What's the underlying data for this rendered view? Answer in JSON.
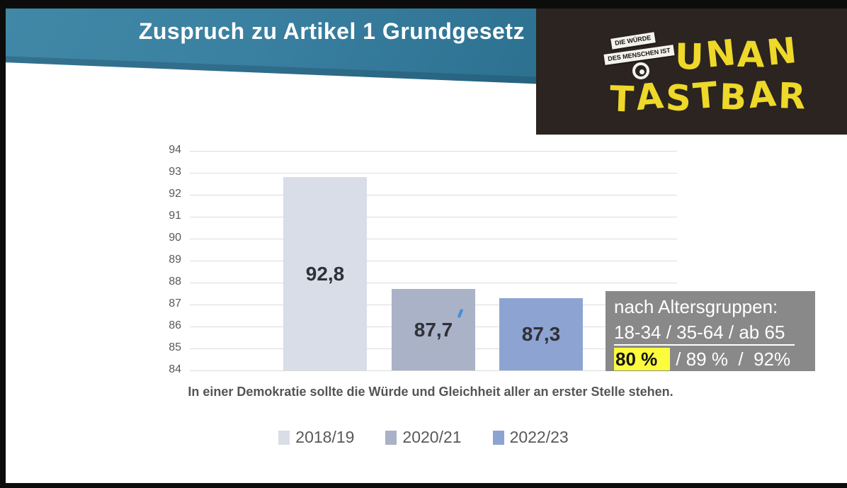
{
  "frame": {
    "letterbox_color": "#0c0c0c"
  },
  "header": {
    "title": "Zuspruch zu Artikel 1 Grundgesetz",
    "banner_color_top": "#4187a6",
    "banner_color_bottom": "#2d7191"
  },
  "logo": {
    "tape_line1": "DIE WÜRDE",
    "tape_line2": "DES MENSCHEN IST",
    "word1": "UNAN",
    "word2": "TASTBAR",
    "bg_color": "#2b2420",
    "text_color": "#eed829"
  },
  "chart_data": {
    "type": "bar",
    "title": "",
    "categories": [
      "2018/19",
      "2020/21",
      "2022/23"
    ],
    "values": [
      92.8,
      87.7,
      87.3
    ],
    "value_labels": [
      "92,8",
      "87,7",
      "87,3"
    ],
    "bar_colors": [
      "#d9dde8",
      "#a9b2c6",
      "#8da4d2"
    ],
    "xlabel": "In einer Demokratie sollte die Würde und Gleichheit aller an erster Stelle stehen.",
    "ylabel": "",
    "ylim": [
      84,
      94
    ],
    "ytick_step": 1,
    "grid": true,
    "legend_position": "bottom"
  },
  "annotation_box": {
    "line1": "nach Altersgruppen:",
    "line2": "18-34 / 35-64 / ab 65",
    "highlight": "80 %",
    "rest": "/ 89 %  /  92%",
    "bg_color": "#898989",
    "highlight_bg": "#fcfc3d"
  }
}
